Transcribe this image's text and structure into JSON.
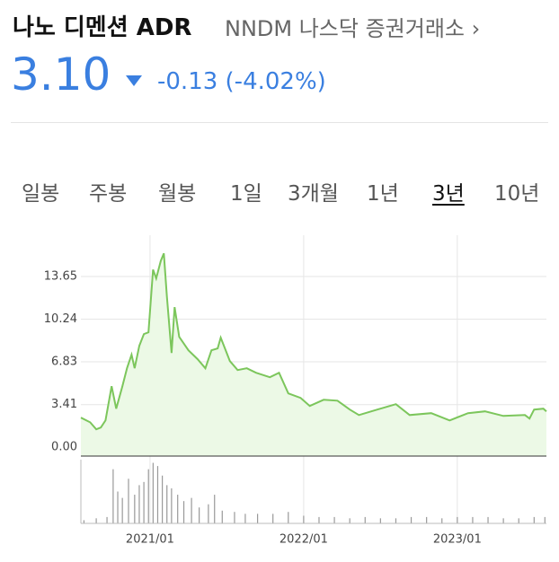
{
  "header": {
    "title": "나노 디멘션 ADR",
    "exchange": "NNDM 나스닥 증권거래소",
    "price": "3.10",
    "change": "-0.13 (-4.02%)"
  },
  "tabs": {
    "items": [
      "일봉",
      "주봉",
      "월봉",
      "1일",
      "3개월",
      "1년",
      "3년",
      "10년"
    ],
    "active": 6
  },
  "chart_data": [
    {
      "type": "line",
      "x": [
        2020.55,
        2020.61,
        2020.65,
        2020.68,
        2020.71,
        2020.75,
        2020.78,
        2020.82,
        2020.85,
        2020.88,
        2020.9,
        2020.93,
        2020.96,
        2020.99,
        2021.02,
        2021.04,
        2021.07,
        2021.09,
        2021.11,
        2021.14,
        2021.16,
        2021.19,
        2021.25,
        2021.31,
        2021.36,
        2021.4,
        2021.44,
        2021.46,
        2021.52,
        2021.57,
        2021.63,
        2021.69,
        2021.78,
        2021.84,
        2021.9,
        2021.98,
        2022.04,
        2022.13,
        2022.22,
        2022.3,
        2022.36,
        2022.48,
        2022.6,
        2022.69,
        2022.83,
        2022.95,
        2023.07,
        2023.18,
        2023.3,
        2023.44,
        2023.47,
        2023.5,
        2023.56,
        2023.58
      ],
      "series": [
        {
          "color": "#7cc65c",
          "values": [
            2.37,
            2.0,
            1.44,
            1.58,
            2.15,
            4.88,
            3.09,
            4.88,
            6.32,
            7.4,
            6.32,
            8.11,
            9.05,
            9.19,
            14.2,
            13.5,
            14.9,
            15.5,
            12.06,
            7.54,
            11.2,
            8.83,
            7.75,
            7.04,
            6.32,
            7.75,
            7.9,
            8.76,
            6.89,
            6.17,
            6.32,
            5.96,
            5.6,
            5.96,
            4.31,
            3.95,
            3.3,
            3.8,
            3.73,
            3.02,
            2.58,
            3.02,
            3.45,
            2.58,
            2.73,
            2.15,
            2.73,
            2.87,
            2.51,
            2.58,
            2.3,
            3.02,
            3.09,
            2.87
          ]
        }
      ],
      "xlim": [
        2020.55,
        2023.58
      ],
      "xticks": [
        {
          "value": 2021.0,
          "label": "2021/01"
        },
        {
          "value": 2022.0,
          "label": "2022/01"
        },
        {
          "value": 2023.0,
          "label": "2023/01"
        }
      ],
      "ylim": [
        -0.7,
        16.95
      ],
      "yticks": [
        {
          "value": 0,
          "label": "0.00"
        },
        3.41,
        6.83,
        10.24,
        13.65
      ],
      "grid": true
    },
    {
      "type": "bar",
      "color": "#999999",
      "x": [
        2020.57,
        2020.65,
        2020.72,
        2020.76,
        2020.79,
        2020.82,
        2020.86,
        2020.9,
        2020.93,
        2020.96,
        2020.99,
        2021.02,
        2021.05,
        2021.08,
        2021.11,
        2021.14,
        2021.18,
        2021.22,
        2021.27,
        2021.32,
        2021.38,
        2021.42,
        2021.47,
        2021.55,
        2021.62,
        2021.7,
        2021.8,
        2021.9,
        2022.0,
        2022.1,
        2022.2,
        2022.3,
        2022.4,
        2022.5,
        2022.6,
        2022.7,
        2022.8,
        2022.9,
        2023.0,
        2023.1,
        2023.2,
        2023.3,
        2023.4,
        2023.5,
        2023.57
      ],
      "values": [
        5,
        8,
        10,
        85,
        50,
        40,
        70,
        45,
        60,
        65,
        85,
        95,
        90,
        75,
        60,
        55,
        45,
        35,
        40,
        25,
        30,
        45,
        20,
        18,
        15,
        15,
        15,
        18,
        12,
        10,
        10,
        8,
        10,
        8,
        8,
        10,
        10,
        8,
        10,
        10,
        10,
        8,
        8,
        10,
        10
      ],
      "xlim": [
        2020.55,
        2023.58
      ],
      "ylim": [
        0,
        100
      ]
    }
  ]
}
